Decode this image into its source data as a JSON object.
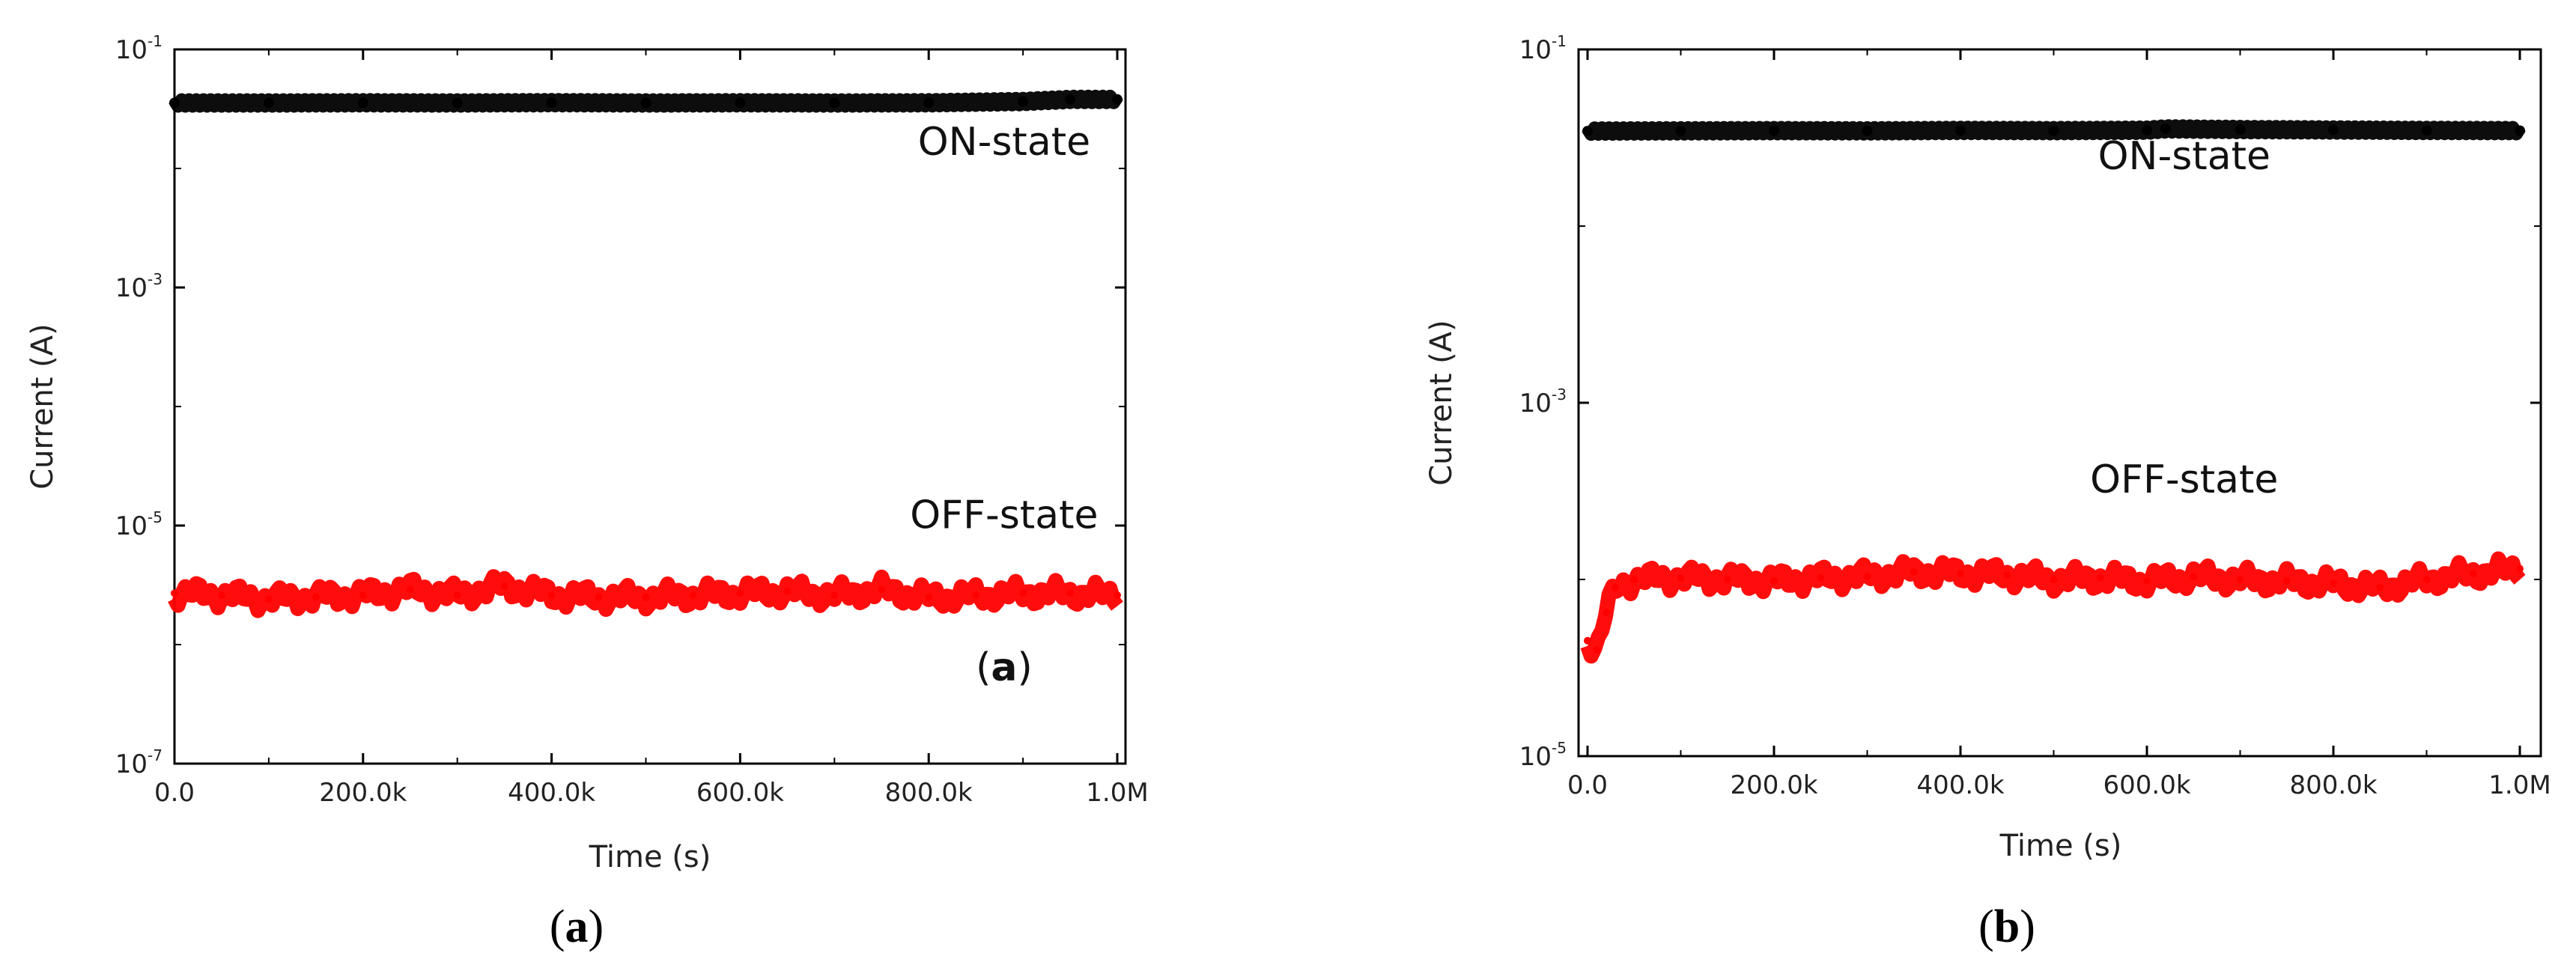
{
  "chart_data": [
    {
      "type": "line",
      "panel": "a",
      "xlabel": "Time (s)",
      "ylabel": "Current (A)",
      "xlim": [
        0,
        1000000
      ],
      "ylim": [
        1e-07,
        0.1
      ],
      "yscale": "log",
      "x_tick_labels": [
        "0.0",
        "200.0k",
        "400.0k",
        "600.0k",
        "800.0k",
        "1.0M"
      ],
      "x_tick_values": [
        0,
        200000,
        400000,
        600000,
        800000,
        1000000
      ],
      "y_tick_labels": [
        {
          "base": "10",
          "exp": "-1"
        },
        {
          "base": "10",
          "exp": "-3"
        },
        {
          "base": "10",
          "exp": "-5"
        },
        {
          "base": "10",
          "exp": "-7"
        }
      ],
      "y_tick_values": [
        0.1,
        0.001,
        1e-05,
        1e-07
      ],
      "annotations": [
        {
          "text": "ON-state",
          "x": 880000,
          "y": 0.013
        },
        {
          "text": "OFF-state",
          "x": 880000,
          "y": 9.5e-06
        }
      ],
      "panel_label": {
        "open": "(",
        "letter": "a",
        "close": ")",
        "x": 880000,
        "y": 5e-07
      },
      "caption": {
        "open": "(",
        "letter": "a",
        "close": ")"
      },
      "series": [
        {
          "name": "ON-state",
          "color": "#000000",
          "x": [
            0,
            100000,
            200000,
            300000,
            400000,
            500000,
            600000,
            700000,
            800000,
            900000,
            950000,
            1000000
          ],
          "y": [
            0.0355,
            0.0355,
            0.0356,
            0.0355,
            0.0357,
            0.0355,
            0.0356,
            0.0355,
            0.0356,
            0.0365,
            0.038,
            0.038
          ]
        },
        {
          "name": "OFF-state",
          "color": "#ff0000",
          "x": [
            0,
            50000,
            100000,
            150000,
            200000,
            250000,
            300000,
            350000,
            400000,
            450000,
            500000,
            550000,
            600000,
            650000,
            700000,
            750000,
            800000,
            850000,
            900000,
            950000,
            1000000
          ],
          "y": [
            2.7e-06,
            2.6e-06,
            2.4e-06,
            2.5e-06,
            2.6e-06,
            2.9e-06,
            2.6e-06,
            3.1e-06,
            2.6e-06,
            2.5e-06,
            2.5e-06,
            2.6e-06,
            2.7e-06,
            2.8e-06,
            2.6e-06,
            2.9e-06,
            2.5e-06,
            2.6e-06,
            2.7e-06,
            2.7e-06,
            2.6e-06
          ]
        }
      ]
    },
    {
      "type": "line",
      "panel": "b",
      "xlabel": "Time (s)",
      "ylabel": "Current (A)",
      "xlim": [
        0,
        1000000
      ],
      "ylim": [
        1e-05,
        0.1
      ],
      "yscale": "log",
      "x_tick_labels": [
        "0.0",
        "200.0k",
        "400.0k",
        "600.0k",
        "800.0k",
        "1.0M"
      ],
      "x_tick_values": [
        0,
        200000,
        400000,
        600000,
        800000,
        1000000
      ],
      "y_tick_labels": [
        {
          "base": "10",
          "exp": "-1"
        },
        {
          "base": "10",
          "exp": "-3"
        },
        {
          "base": "10",
          "exp": "-5"
        }
      ],
      "y_tick_values": [
        0.1,
        0.001,
        1e-05
      ],
      "annotations": [
        {
          "text": "ON-state",
          "x": 640000,
          "y": 0.021
        },
        {
          "text": "OFF-state",
          "x": 640000,
          "y": 0.00031
        }
      ],
      "caption": {
        "open": "(",
        "letter": "b",
        "close": ")"
      },
      "series": [
        {
          "name": "ON-state",
          "color": "#000000",
          "x": [
            0,
            100000,
            200000,
            300000,
            400000,
            500000,
            600000,
            620000,
            700000,
            800000,
            900000,
            1000000
          ],
          "y": [
            0.0345,
            0.0346,
            0.0347,
            0.0346,
            0.0348,
            0.0347,
            0.0349,
            0.0355,
            0.0352,
            0.035,
            0.0348,
            0.0347
          ]
        },
        {
          "name": "OFF-state",
          "color": "#ff0000",
          "x": [
            0,
            10000,
            20000,
            30000,
            50000,
            100000,
            150000,
            200000,
            250000,
            300000,
            350000,
            400000,
            450000,
            500000,
            550000,
            600000,
            650000,
            700000,
            750000,
            800000,
            850000,
            900000,
            950000,
            1000000
          ],
          "y": [
            4.5e-05,
            4e-05,
            6.5e-05,
            9e-05,
            0.0001,
            0.000102,
            0.0001,
            9.8e-05,
            0.000102,
            0.000104,
            0.00011,
            0.000108,
            0.000106,
            0.0001,
            0.000102,
            9.8e-05,
            0.000104,
            0.0001,
            9.8e-05,
            9.5e-05,
            9e-05,
            0.0001,
            0.000108,
            0.000115
          ]
        }
      ]
    }
  ]
}
